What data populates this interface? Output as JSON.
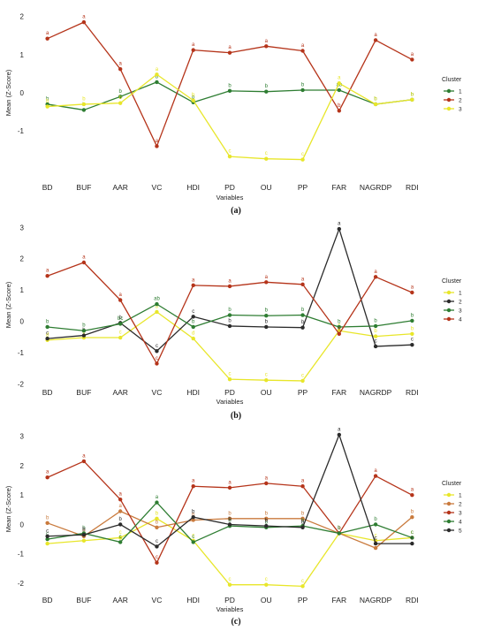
{
  "chart_data": [
    {
      "panel_label": "(a)",
      "type": "line",
      "categories": [
        "BD",
        "BUF",
        "AAR",
        "VC",
        "HDI",
        "PD",
        "OU",
        "PP",
        "FAR",
        "NAGRDP",
        "RDI"
      ],
      "xlabel": "Variables",
      "ylabel": "Mean (Z-Score)",
      "ylim": [
        -2.2,
        2.2
      ],
      "yticks": [
        -1,
        0,
        1,
        2
      ],
      "grid": false,
      "legend": {
        "title": "Cluster",
        "position": "right"
      },
      "series": [
        {
          "name": "1",
          "color": "#2e7d32",
          "values": [
            -0.3,
            -0.45,
            -0.1,
            0.28,
            -0.25,
            0.05,
            0.03,
            0.07,
            0.07,
            -0.3,
            -0.18
          ],
          "labels": [
            "b",
            "b",
            "b",
            "b",
            "b",
            "b",
            "b",
            "b",
            "ab",
            "b",
            "b"
          ]
        },
        {
          "name": "2",
          "color": "#b5341a",
          "values": [
            1.42,
            1.85,
            0.62,
            -1.4,
            1.12,
            1.05,
            1.22,
            1.1,
            -0.47,
            1.38,
            0.87
          ],
          "labels": [
            "a",
            "a",
            "a",
            "a",
            "a",
            "a",
            "a",
            "a",
            "b",
            "a",
            "a"
          ]
        },
        {
          "name": "3",
          "color": "#e8e62a",
          "values": [
            -0.36,
            -0.3,
            -0.27,
            0.48,
            -0.2,
            -1.67,
            -1.73,
            -1.75,
            0.25,
            -0.3,
            -0.18
          ],
          "labels": [
            "b",
            "b",
            "b",
            "a",
            "b",
            "c",
            "c",
            "c",
            "a",
            "b",
            "b"
          ]
        }
      ]
    },
    {
      "panel_label": "(b)",
      "type": "line",
      "categories": [
        "BD",
        "BUF",
        "AAR",
        "VC",
        "HDI",
        "PD",
        "OU",
        "PP",
        "FAR",
        "NAGRDP",
        "RDI"
      ],
      "xlabel": "Variables",
      "ylabel": "Mean (Z-Score)",
      "ylim": [
        -2.1,
        3.15
      ],
      "yticks": [
        -2,
        -1,
        0,
        1,
        2,
        3
      ],
      "grid": false,
      "legend": {
        "title": "Cluster",
        "position": "right"
      },
      "series": [
        {
          "name": "1",
          "color": "#e8e62a",
          "values": [
            -0.6,
            -0.52,
            -0.52,
            0.3,
            -0.55,
            -1.85,
            -1.88,
            -1.9,
            -0.3,
            -0.48,
            -0.4
          ],
          "labels": [
            "d",
            "c",
            "c",
            "b",
            "d",
            "c",
            "c",
            "c",
            "c",
            "b",
            "b"
          ]
        },
        {
          "name": "2",
          "color": "#2b2b2b",
          "values": [
            -0.55,
            -0.45,
            -0.05,
            -0.95,
            0.15,
            -0.15,
            -0.18,
            -0.2,
            2.95,
            -0.8,
            -0.75
          ],
          "labels": [
            "c",
            "b",
            "b",
            "c",
            "c",
            "b",
            "b",
            "b",
            "a",
            "c",
            "c"
          ]
        },
        {
          "name": "3",
          "color": "#2e7d32",
          "values": [
            -0.18,
            -0.3,
            -0.08,
            0.55,
            -0.18,
            0.2,
            0.18,
            0.2,
            -0.18,
            -0.15,
            0.02
          ],
          "labels": [
            "b",
            "b",
            "bc",
            "ab",
            "b",
            "b",
            "b",
            "b",
            "b",
            "b",
            "b"
          ]
        },
        {
          "name": "4",
          "color": "#b5341a",
          "values": [
            1.45,
            1.88,
            0.68,
            -1.35,
            1.15,
            1.12,
            1.25,
            1.18,
            -0.4,
            1.42,
            0.92
          ],
          "labels": [
            "a",
            "a",
            "a",
            "c",
            "a",
            "a",
            "a",
            "a",
            "c",
            "a",
            "a"
          ]
        }
      ]
    },
    {
      "panel_label": "(c)",
      "type": "line",
      "categories": [
        "BD",
        "BUF",
        "AAR",
        "VC",
        "HDI",
        "PD",
        "OU",
        "PP",
        "FAR",
        "NAGRDP",
        "RDI"
      ],
      "xlabel": "Variables",
      "ylabel": "Mean (Z-Score)",
      "ylim": [
        -2.3,
        3.35
      ],
      "yticks": [
        -2,
        -1,
        0,
        1,
        2,
        3
      ],
      "grid": false,
      "legend": {
        "title": "Cluster",
        "position": "right"
      },
      "series": [
        {
          "name": "1",
          "color": "#e8e62a",
          "values": [
            -0.65,
            -0.55,
            -0.45,
            0.2,
            -0.55,
            -2.05,
            -2.05,
            -2.1,
            -0.3,
            -0.55,
            -0.45
          ],
          "labels": [
            "c",
            "c",
            "c",
            "b",
            "c",
            "c",
            "c",
            "c",
            "b",
            "c",
            "c"
          ]
        },
        {
          "name": "2",
          "color": "#c97a3d",
          "values": [
            0.05,
            -0.4,
            0.45,
            -0.1,
            0.15,
            0.2,
            0.2,
            0.2,
            -0.3,
            -0.8,
            0.25
          ],
          "labels": [
            "b",
            "b",
            "a",
            "b",
            "b",
            "b",
            "b",
            "b",
            "b",
            "c",
            "b"
          ]
        },
        {
          "name": "3",
          "color": "#b5341a",
          "values": [
            1.6,
            2.15,
            0.85,
            -1.3,
            1.3,
            1.25,
            1.4,
            1.3,
            -0.3,
            1.65,
            1.0
          ],
          "labels": [
            "a",
            "a",
            "a",
            "c",
            "a",
            "a",
            "a",
            "a",
            "b",
            "a",
            "a"
          ]
        },
        {
          "name": "4",
          "color": "#2e7d32",
          "values": [
            -0.5,
            -0.3,
            -0.6,
            0.75,
            -0.6,
            -0.05,
            -0.1,
            -0.05,
            -0.3,
            0.0,
            -0.45
          ],
          "labels": [
            "c",
            "b",
            "c",
            "a",
            "c",
            "b",
            "b",
            "b",
            "b",
            "b",
            "c"
          ]
        },
        {
          "name": "5",
          "color": "#2b2b2b",
          "values": [
            -0.4,
            -0.35,
            0.0,
            -0.75,
            0.25,
            0.0,
            -0.05,
            -0.1,
            3.05,
            -0.65,
            -0.65
          ],
          "labels": [
            "c",
            "b",
            "b",
            "c",
            "b",
            "b",
            "b",
            "b",
            "a",
            "c",
            "c"
          ]
        }
      ]
    }
  ]
}
